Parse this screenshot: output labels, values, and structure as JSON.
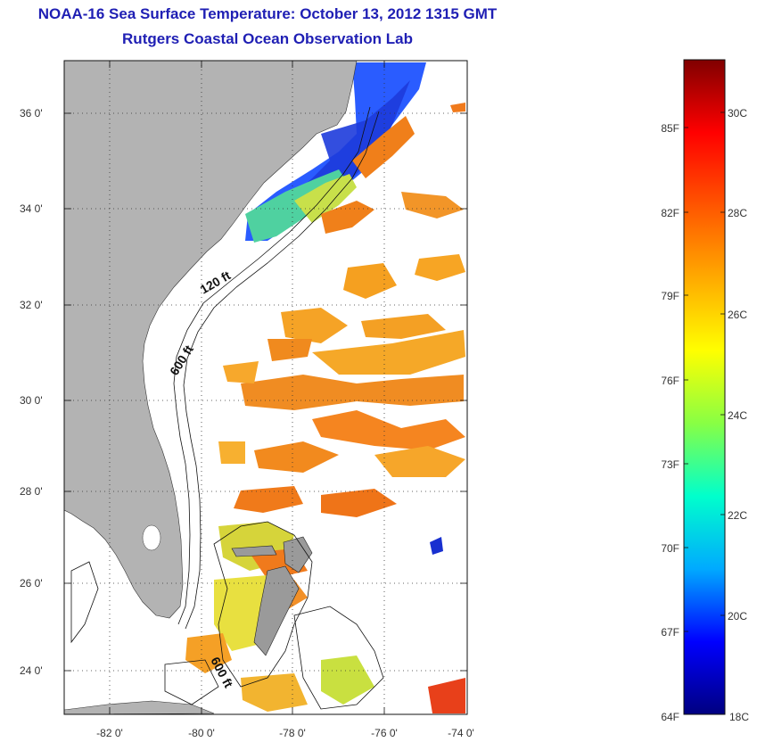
{
  "header": {
    "title": "NOAA-16 Sea Surface Temperature:  October 13, 2012 1315 GMT",
    "subtitle": "Rutgers Coastal Ocean Observation Lab"
  },
  "map": {
    "lat_ticks": [
      "36 0'",
      "34 0'",
      "32 0'",
      "30 0'",
      "28 0'",
      "26 0'",
      "24 0'"
    ],
    "lon_ticks": [
      "-82 0'",
      "-80 0'",
      "-78 0'",
      "-76 0'",
      "-74 0'"
    ],
    "contour_labels": [
      "120 ft",
      "600 ft",
      "600 ft"
    ],
    "land_color": "#b3b3b3",
    "grid": true
  },
  "colorbar": {
    "f_labels": [
      "85F",
      "82F",
      "79F",
      "76F",
      "73F",
      "70F",
      "67F",
      "64F"
    ],
    "c_labels": [
      "30C",
      "28C",
      "26C",
      "24C",
      "22C",
      "20C",
      "18C"
    ],
    "colors": [
      "#000080",
      "#0000ff",
      "#00aaff",
      "#00ffcc",
      "#88ff44",
      "#ffff00",
      "#ffaa00",
      "#ff5500",
      "#ff0000",
      "#800000"
    ]
  }
}
